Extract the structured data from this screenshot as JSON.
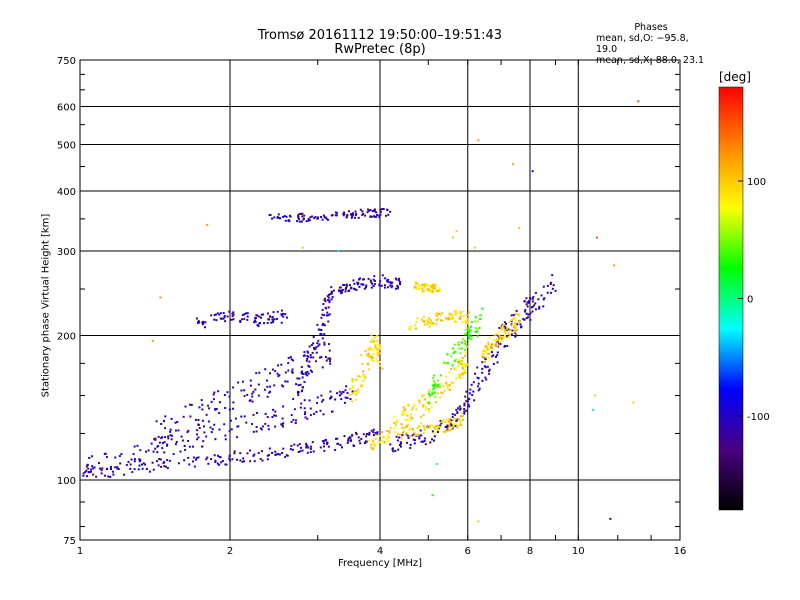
{
  "chart_data": {
    "type": "scatter",
    "title": "Tromsø 20161112 19:50:00–19:51:43",
    "subtitle": "RwPretec (8p)",
    "xlabel": "Frequency [MHz]",
    "ylabel": "Stationary phase Virtual Height [km]",
    "x_scale": "log",
    "y_scale": "log",
    "xlim": [
      1,
      16
    ],
    "ylim": [
      75,
      750
    ],
    "x_ticks": [
      1,
      2,
      4,
      6,
      8,
      10,
      16
    ],
    "x_tick_labels": [
      "1",
      "2",
      "4",
      "6",
      "8",
      "10",
      "16"
    ],
    "y_ticks": [
      75,
      100,
      200,
      300,
      400,
      500,
      600,
      750
    ],
    "y_tick_labels": [
      "75",
      "100",
      "200",
      "300",
      "400",
      "500",
      "600",
      "750"
    ],
    "grid": true,
    "phases_box": {
      "header": "Phases",
      "line_o": "mean, sd,O: −95.8, 19.0",
      "line_x": "mean, sd,X:  88.0, 23.1"
    },
    "colorbar": {
      "label": "[deg]",
      "range": [
        -180,
        180
      ],
      "ticks": [
        100,
        0,
        -100
      ],
      "tick_labels": [
        "100",
        "0",
        "-100"
      ],
      "colors": [
        "#ff0000",
        "#ff8800",
        "#ffff00",
        "#00ff00",
        "#00ffff",
        "#0000ff",
        "#4a0080",
        "#000000"
      ]
    },
    "series": [
      {
        "phase": -110,
        "segments": [
          {
            "x": [
              1.0,
              1.25,
              1.6,
              2.0,
              2.5,
              3.0,
              3.5,
              4.0
            ],
            "y": [
              102,
              106,
              109,
              111,
              114,
              117,
              121,
              125
            ],
            "spread": 0.03
          },
          {
            "x": [
              1.0,
              1.3,
              1.6,
              2.0,
              2.5,
              3.0,
              3.5
            ],
            "y": [
              107,
              113,
              120,
              128,
              135,
              142,
              150
            ],
            "spread": 0.05
          },
          {
            "x": [
              1.4,
              1.7,
              2.0,
              2.4,
              2.8,
              3.2
            ],
            "y": [
              125,
              135,
              150,
              160,
              175,
              190
            ],
            "spread": 0.07
          },
          {
            "x": [
              2.7,
              2.9,
              3.1,
              3.2
            ],
            "y": [
              150,
              180,
              220,
              245
            ],
            "spread": 0.05
          },
          {
            "x": [
              1.7,
              2.0,
              2.3,
              2.6
            ],
            "y": [
              212,
              218,
              215,
              220
            ],
            "spread": 0.03
          },
          {
            "x": [
              2.4,
              2.8,
              3.3,
              3.8,
              4.2
            ],
            "y": [
              350,
              352,
              355,
              360,
              360
            ],
            "spread": 0.02
          },
          {
            "x": [
              3.3,
              3.6,
              4.0,
              4.4
            ],
            "y": [
              250,
              255,
              260,
              255
            ],
            "spread": 0.03
          },
          {
            "x": [
              4.2,
              4.8,
              5.5,
              6.0
            ],
            "y": [
              118,
              122,
              130,
              145
            ],
            "spread": 0.04
          },
          {
            "x": [
              6.0,
              6.5,
              7.0,
              7.5,
              8.0,
              9.0
            ],
            "y": [
              150,
              170,
              195,
              215,
              230,
              255
            ],
            "spread": 0.06
          }
        ]
      },
      {
        "phase": 95,
        "segments": [
          {
            "x": [
              3.5,
              3.7,
              3.9,
              4.0
            ],
            "y": [
              150,
              170,
              190,
              180
            ],
            "spread": 0.06
          },
          {
            "x": [
              3.8,
              4.2,
              4.8,
              5.5,
              5.9
            ],
            "y": [
              118,
              125,
              128,
              130,
              135
            ],
            "spread": 0.03
          },
          {
            "x": [
              4.2,
              4.7,
              5.2,
              5.8,
              6.0
            ],
            "y": [
              130,
              140,
              150,
              170,
              185
            ],
            "spread": 0.05
          },
          {
            "x": [
              4.6,
              5.1,
              5.6,
              6.0
            ],
            "y": [
              210,
              215,
              220,
              218
            ],
            "spread": 0.03
          },
          {
            "x": [
              4.7,
              5.0,
              5.3
            ],
            "y": [
              255,
              250,
              252
            ],
            "spread": 0.02
          },
          {
            "x": [
              6.4,
              6.8,
              7.2,
              7.6
            ],
            "y": [
              180,
              195,
              205,
              215
            ],
            "spread": 0.04
          }
        ]
      },
      {
        "phase": 40,
        "segments": [
          {
            "x": [
              5.0,
              5.5,
              6.0,
              6.5
            ],
            "y": [
              150,
              175,
              200,
              220
            ],
            "spread": 0.05
          }
        ]
      }
    ],
    "scattered_points": [
      {
        "x": 1.4,
        "y": 195,
        "phase": 120
      },
      {
        "x": 1.45,
        "y": 240,
        "phase": 120
      },
      {
        "x": 1.8,
        "y": 340,
        "phase": 120
      },
      {
        "x": 6.3,
        "y": 510,
        "phase": 120
      },
      {
        "x": 7.4,
        "y": 455,
        "phase": 120
      },
      {
        "x": 8.1,
        "y": 440,
        "phase": -100
      },
      {
        "x": 10.9,
        "y": 320,
        "phase": 150
      },
      {
        "x": 11.8,
        "y": 280,
        "phase": 120
      },
      {
        "x": 13.2,
        "y": 615,
        "phase": 150
      },
      {
        "x": 12.9,
        "y": 145,
        "phase": 100
      },
      {
        "x": 11.6,
        "y": 83,
        "phase": -100
      },
      {
        "x": 6.3,
        "y": 82,
        "phase": 100
      },
      {
        "x": 5.1,
        "y": 93,
        "phase": 30
      },
      {
        "x": 5.2,
        "y": 108,
        "phase": -10
      },
      {
        "x": 10.8,
        "y": 150,
        "phase": 60
      },
      {
        "x": 10.7,
        "y": 140,
        "phase": -30
      },
      {
        "x": 6.2,
        "y": 305,
        "phase": 100
      },
      {
        "x": 7.6,
        "y": 335,
        "phase": 100
      },
      {
        "x": 5.7,
        "y": 330,
        "phase": 100
      },
      {
        "x": 5.6,
        "y": 320,
        "phase": 100
      },
      {
        "x": 2.8,
        "y": 305,
        "phase": 100
      },
      {
        "x": 3.3,
        "y": 300,
        "phase": -30
      }
    ]
  }
}
